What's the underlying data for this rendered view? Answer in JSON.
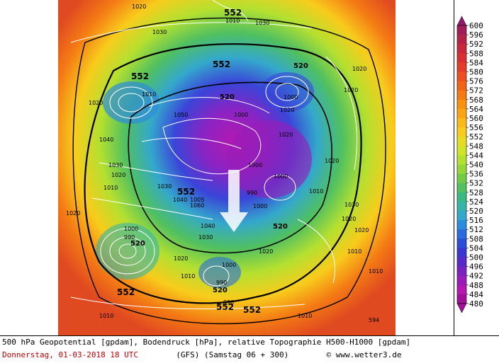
{
  "map": {
    "isobar_labels": [
      "1020",
      "1030",
      "1010",
      "1000",
      "1040",
      "1050",
      "1060",
      "990",
      "1005"
    ],
    "geopot_labels": [
      "552",
      "520"
    ],
    "corner_code": "594"
  },
  "legend": {
    "values": [
      "600",
      "596",
      "592",
      "588",
      "584",
      "580",
      "576",
      "572",
      "568",
      "564",
      "560",
      "556",
      "552",
      "548",
      "544",
      "540",
      "536",
      "532",
      "528",
      "524",
      "520",
      "516",
      "512",
      "508",
      "504",
      "500",
      "496",
      "492",
      "488",
      "484",
      "480"
    ],
    "colors": [
      "#8c1a6e",
      "#a01e58",
      "#b42248",
      "#c8283c",
      "#d83030",
      "#e43c28",
      "#ec5020",
      "#f06418",
      "#f47a14",
      "#f89012",
      "#faa614",
      "#fcba18",
      "#f8cc1c",
      "#e8dc22",
      "#d0e428",
      "#b4e030",
      "#94d838",
      "#70cc44",
      "#50c060",
      "#3cb884",
      "#36b4a8",
      "#34a8cc",
      "#2e8cdc",
      "#2a6cdc",
      "#2a4ed8",
      "#3a36d0",
      "#5a2ac8",
      "#7a22c0",
      "#9a1cb8",
      "#b418b0",
      "#a01098"
    ]
  },
  "footer": {
    "line1": "500 hPa Geopotential [gpdam], Bodendruck [hPa], relative Topographie H500-H1000 [gpdam]",
    "date": "Donnerstag, 01-03-2018  18 UTC",
    "model": "(GFS)  (Samstag 06 + 300)",
    "copyright": "© www.wetter3.de"
  }
}
